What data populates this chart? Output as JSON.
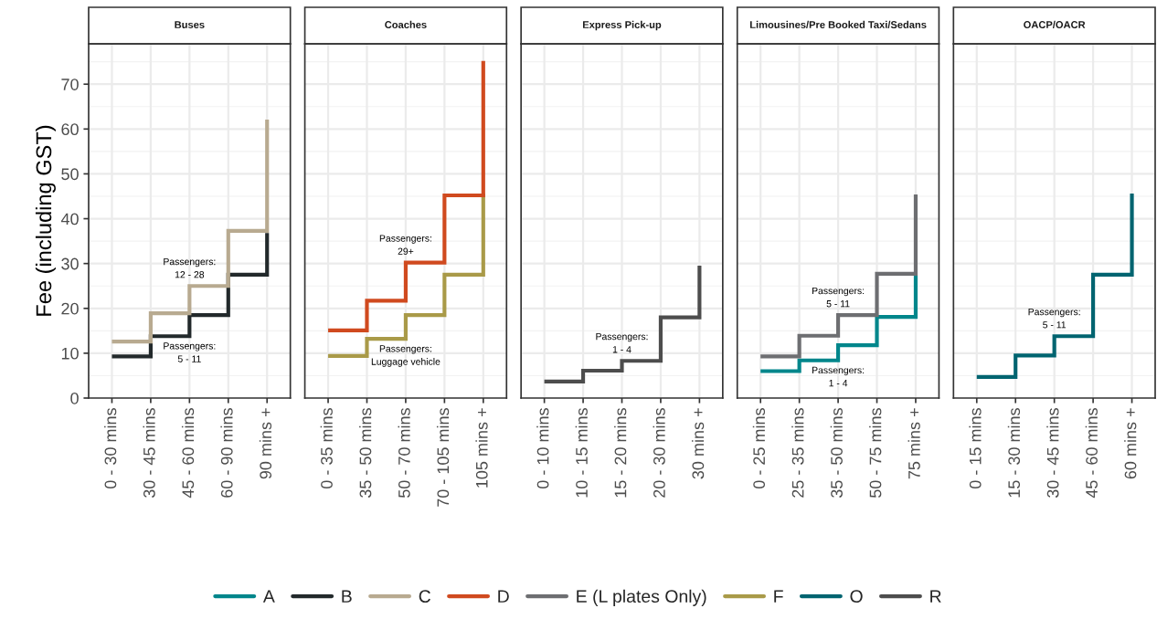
{
  "chart_data": [
    {
      "type": "step",
      "title": "Buses",
      "ylabel": "Fee (including GST)",
      "categories": [
        "0 - 30 mins",
        "30 - 45 mins",
        "45 - 60 mins",
        "60 - 90 mins",
        "90 mins +"
      ],
      "ylim": [
        0,
        79
      ],
      "yticks": [
        0,
        10,
        20,
        30,
        40,
        50,
        60,
        70
      ],
      "grid": true,
      "legend": "bottom",
      "series": [
        {
          "name": "B",
          "color": "#22292b",
          "values": [
            9.3,
            13.8,
            18.5,
            27.5,
            36.8
          ]
        },
        {
          "name": "C",
          "color": "#b8aa90",
          "values": [
            12.6,
            18.9,
            25.0,
            37.3,
            62.1
          ]
        }
      ],
      "annotations": [
        "Passengers:\n12 - 28",
        "Passengers:\n5 - 11"
      ]
    },
    {
      "type": "step",
      "title": "Coaches",
      "categories": [
        "0 - 35 mins",
        "35 - 50 mins",
        "50 - 70 mins",
        "70 - 105 mins",
        "105 mins +"
      ],
      "ylim": [
        0,
        79
      ],
      "yticks": [
        0,
        10,
        20,
        30,
        40,
        50,
        60,
        70
      ],
      "grid": true,
      "legend": "bottom",
      "tick_labels": "x",
      "series": [
        {
          "name": "F",
          "color": "#a99a48",
          "values": [
            9.4,
            13.2,
            18.5,
            27.5,
            45.6
          ]
        },
        {
          "name": "D",
          "color": "#d04a1f",
          "values": [
            15.1,
            21.7,
            30.2,
            45.2,
            75.2
          ]
        }
      ],
      "annotations": [
        "Passengers:\n29+",
        "Passengers:\nLuggage vehicle"
      ]
    },
    {
      "type": "step",
      "title": "Express Pick-up",
      "categories": [
        "0 - 10 mins",
        "10 - 15 mins",
        "15 - 20 mins",
        "20 - 30 mins",
        "30 mins +"
      ],
      "ylim": [
        0,
        79
      ],
      "yticks": [
        0,
        10,
        20,
        30,
        40,
        50,
        60,
        70
      ],
      "grid": true,
      "legend": "bottom",
      "tick_labels": "x",
      "series": [
        {
          "name": "R",
          "color": "#4d4d4d",
          "values": [
            3.7,
            6.1,
            8.3,
            18.0,
            29.5
          ]
        }
      ],
      "annotations": [
        "Passengers:\n1 - 4"
      ]
    },
    {
      "type": "step",
      "title": "Limousines/Pre Booked Taxi/Sedans",
      "categories": [
        "0 - 25 mins",
        "25 - 35 mins",
        "35 - 50 mins",
        "50 - 75 mins",
        "75 mins +"
      ],
      "ylim": [
        0,
        79
      ],
      "yticks": [
        0,
        10,
        20,
        30,
        40,
        50,
        60,
        70
      ],
      "grid": true,
      "legend": "bottom",
      "tick_labels": "x",
      "series": [
        {
          "name": "A",
          "color": "#00868b",
          "values": [
            6.0,
            8.4,
            11.8,
            18.1,
            27.5
          ]
        },
        {
          "name": "E (L plates Only)",
          "color": "#6d6e71",
          "values": [
            9.3,
            13.9,
            18.5,
            27.7,
            45.4
          ]
        }
      ],
      "annotations": [
        "Passengers:\n5 - 11",
        "Passengers:\n1 - 4"
      ]
    },
    {
      "type": "step",
      "title": "OACP/OACR",
      "categories": [
        "0 - 15 mins",
        "15 - 30 mins",
        "30 - 45 mins",
        "45 - 60 mins",
        "60 mins +"
      ],
      "ylim": [
        0,
        79
      ],
      "yticks": [
        0,
        10,
        20,
        30,
        40,
        50,
        60,
        70
      ],
      "grid": true,
      "legend": "bottom",
      "tick_labels": "x",
      "series": [
        {
          "name": "O",
          "color": "#006470",
          "values": [
            4.7,
            9.5,
            13.8,
            27.5,
            45.6
          ]
        }
      ],
      "annotations": [
        "Passengers:\n5 - 11"
      ]
    }
  ]
}
